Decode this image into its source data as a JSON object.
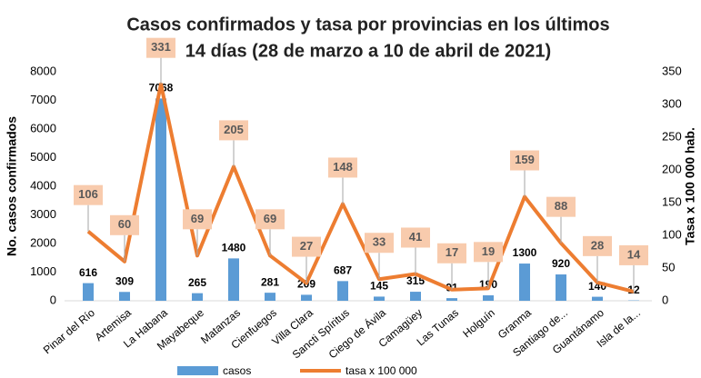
{
  "chart_data": {
    "type": "bar_line",
    "title": [
      "Casos confirmados y tasa por provincias en los últimos",
      "14 días (28 de marzo a 10 de abril de 2021)"
    ],
    "y_label": "No. casos confirmados",
    "y2_label": "Tasa x 100 000 hab.",
    "categories": [
      "Pinar del Río",
      "Artemisa",
      "La Habana",
      "Mayabeque",
      "Matanzas",
      "Cienfuegos",
      "Villa Clara",
      "Sancti Spíritus",
      "Ciego de Ávila",
      "Camagüey",
      "Las Tunas",
      "Holguín",
      "Granma",
      "Santiago de...",
      "Guantánamo",
      "Isla de la..."
    ],
    "series": [
      {
        "name": "casos",
        "type": "bar",
        "color": "#5b9bd5",
        "values": [
          616,
          309,
          7068,
          265,
          1480,
          281,
          209,
          687,
          145,
          315,
          91,
          190,
          1300,
          920,
          140,
          12
        ]
      },
      {
        "name": "tasa x 100 000",
        "type": "line",
        "axis": "y2",
        "color": "#ed7d31",
        "values": [
          106,
          60,
          331,
          69,
          205,
          69,
          27,
          148,
          33,
          41,
          17,
          19,
          159,
          88,
          28,
          14
        ]
      }
    ],
    "ylim": [
      0,
      8000
    ],
    "yticks": [
      0,
      1000,
      2000,
      3000,
      4000,
      5000,
      6000,
      7000,
      8000
    ],
    "y2lim": [
      0,
      350
    ],
    "y2ticks": [
      0,
      50,
      100,
      150,
      200,
      250,
      300,
      350
    ],
    "legend": "bottom"
  }
}
